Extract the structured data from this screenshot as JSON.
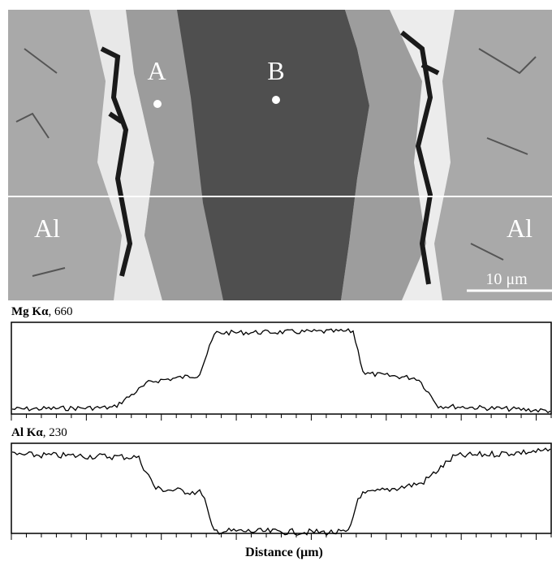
{
  "image": {
    "labels": {
      "a": "A",
      "b": "B",
      "al_left": "Al",
      "al_right": "Al"
    },
    "scale_bar": "10 μm"
  },
  "profiles": [
    {
      "element": "Mg Kα",
      "suffix": ", 660"
    },
    {
      "element": "Al Kα",
      "suffix": ", 230"
    }
  ],
  "x_axis_label": "Distance (μm)"
}
